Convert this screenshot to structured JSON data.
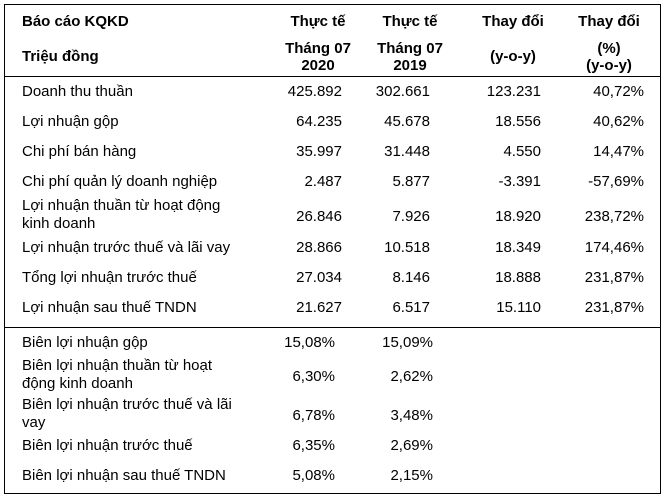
{
  "header": {
    "title": "Báo cáo KQKD",
    "unit": "Triệu đồng",
    "col1": {
      "line1": "Thực tế",
      "line2": "Tháng 07",
      "line3": "2020"
    },
    "col2": {
      "line1": "Thực tế",
      "line2": "Tháng 07",
      "line3": "2019"
    },
    "col3": {
      "line1": "Thay đổi",
      "line2": "(y-o-y)"
    },
    "col4": {
      "line1": "Thay đổi",
      "line2": "(%)",
      "line3": "(y-o-y)"
    }
  },
  "rows": [
    {
      "label": "Doanh thu thuần",
      "v2020": "425.892",
      "v2019": "302.661",
      "change": "123.231",
      "pct": "40,72%"
    },
    {
      "label": "Lợi nhuận gộp",
      "v2020": "64.235",
      "v2019": "45.678",
      "change": "18.556",
      "pct": "40,62%"
    },
    {
      "label": "Chi phí bán hàng",
      "v2020": "35.997",
      "v2019": "31.448",
      "change": "4.550",
      "pct": "14,47%"
    },
    {
      "label": "Chi phí quản lý doanh nghiệp",
      "v2020": "2.487",
      "v2019": "5.877",
      "change": "-3.391",
      "pct": "-57,69%"
    },
    {
      "label": "Lợi nhuận thuần từ hoạt động",
      "label2": "kinh doanh",
      "v2020": "26.846",
      "v2019": "7.926",
      "change": "18.920",
      "pct": "238,72%"
    },
    {
      "label": "Lợi nhuận trước thuế và lãi vay",
      "v2020": "28.866",
      "v2019": "10.518",
      "change": "18.349",
      "pct": "174,46%"
    },
    {
      "label": "Tổng lợi nhuận trước thuế",
      "v2020": "27.034",
      "v2019": "8.146",
      "change": "18.888",
      "pct": "231,87%"
    },
    {
      "label": "Lợi nhuận sau thuế TNDN",
      "v2020": "21.627",
      "v2019": "6.517",
      "change": "15.110",
      "pct": "231,87%"
    }
  ],
  "margins": [
    {
      "label": "Biên lợi nhuận gộp",
      "v2020": "15,08%",
      "v2019": "15,09%"
    },
    {
      "label": "Biên lợi nhuận thuần từ hoạt",
      "label2": "động kinh doanh",
      "v2020": "6,30%",
      "v2019": "2,62%"
    },
    {
      "label": "Biên lợi nhuận trước thuế và lãi",
      "label2": "vay",
      "v2020": "6,78%",
      "v2019": "3,48%"
    },
    {
      "label": "Biên lợi nhuận trước thuế",
      "v2020": "6,35%",
      "v2019": "2,69%"
    },
    {
      "label": "Biên lợi nhuận sau thuế TNDN",
      "v2020": "5,08%",
      "v2019": "2,15%"
    }
  ]
}
